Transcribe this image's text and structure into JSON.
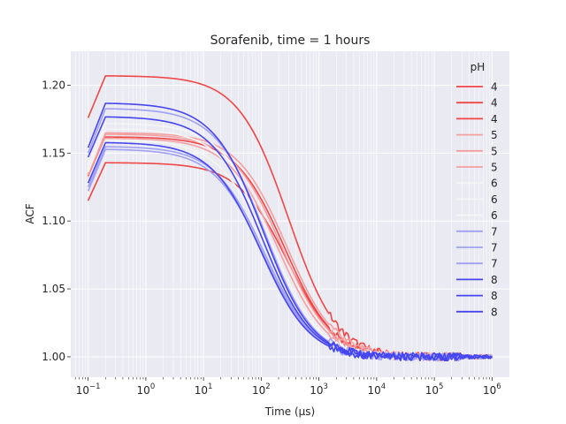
{
  "chart_data": {
    "type": "line",
    "title": "Sorafenib, time = 1 hours",
    "xlabel": "Time (μs)",
    "ylabel": "ACF",
    "x_scale": "log",
    "xlim": [
      0.05,
      2000000
    ],
    "ylim": [
      0.985,
      1.225
    ],
    "grid": true,
    "x_ticks": [
      {
        "value": 0.1,
        "base": "10",
        "exp": "−1"
      },
      {
        "value": 1,
        "base": "10",
        "exp": "0"
      },
      {
        "value": 10,
        "base": "10",
        "exp": "1"
      },
      {
        "value": 100,
        "base": "10",
        "exp": "2"
      },
      {
        "value": 1000,
        "base": "10",
        "exp": "3"
      },
      {
        "value": 10000,
        "base": "10",
        "exp": "4"
      },
      {
        "value": 100000,
        "base": "10",
        "exp": "5"
      },
      {
        "value": 1000000,
        "base": "10",
        "exp": "6"
      }
    ],
    "y_ticks": [
      "1.00",
      "1.05",
      "1.10",
      "1.15",
      "1.20"
    ],
    "legend": {
      "title": "pH",
      "placement": "right",
      "entries": [
        "4",
        "4",
        "4",
        "5",
        "5",
        "5",
        "6",
        "6",
        "6",
        "7",
        "7",
        "7",
        "8",
        "8",
        "8"
      ]
    },
    "series": [
      {
        "label": "4",
        "color": "#f04646",
        "amp": 0.207,
        "start": 0.176,
        "tau": 300
      },
      {
        "label": "4",
        "color": "#f04646",
        "amp": 0.143,
        "start": 0.115,
        "tau": 290
      },
      {
        "label": "4",
        "color": "#f04646",
        "amp": 0.162,
        "start": 0.133,
        "tau": 260
      },
      {
        "label": "5",
        "color": "#f5a0a0",
        "amp": 0.165,
        "start": 0.135,
        "tau": 280
      },
      {
        "label": "5",
        "color": "#f5a0a0",
        "amp": 0.164,
        "start": 0.134,
        "tau": 230
      },
      {
        "label": "5",
        "color": "#f5a0a0",
        "amp": 0.161,
        "start": 0.131,
        "tau": 200
      },
      {
        "label": "6",
        "color": "#f5f5f5",
        "amp": 0.172,
        "start": 0.14,
        "tau": 150
      },
      {
        "label": "6",
        "color": "#f5f5f5",
        "amp": 0.168,
        "start": 0.136,
        "tau": 140
      },
      {
        "label": "6",
        "color": "#f5f5f5",
        "amp": 0.16,
        "start": 0.13,
        "tau": 135
      },
      {
        "label": "7",
        "color": "#a0a0f5",
        "amp": 0.183,
        "start": 0.15,
        "tau": 120
      },
      {
        "label": "7",
        "color": "#a0a0f5",
        "amp": 0.155,
        "start": 0.125,
        "tau": 115
      },
      {
        "label": "7",
        "color": "#a0a0f5",
        "amp": 0.153,
        "start": 0.122,
        "tau": 110
      },
      {
        "label": "8",
        "color": "#4646f0",
        "amp": 0.187,
        "start": 0.154,
        "tau": 110
      },
      {
        "label": "8",
        "color": "#4646f0",
        "amp": 0.177,
        "start": 0.147,
        "tau": 105
      },
      {
        "label": "8",
        "color": "#4646f0",
        "amp": 0.158,
        "start": 0.128,
        "tau": 100
      }
    ]
  }
}
